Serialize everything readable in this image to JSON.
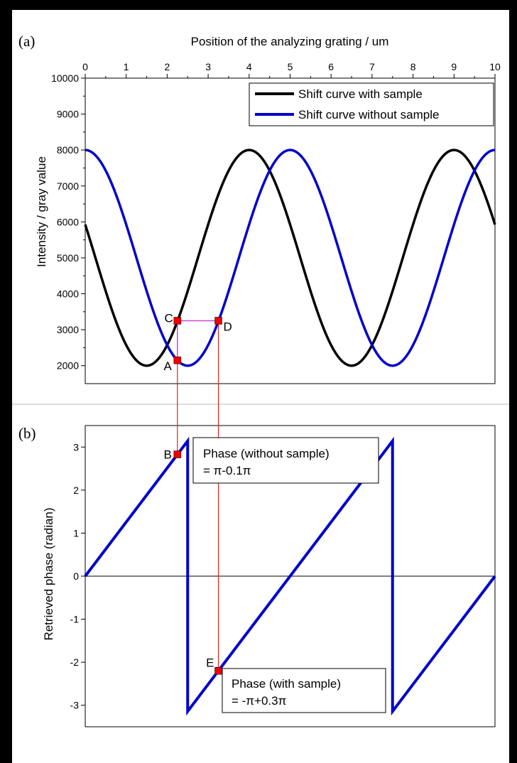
{
  "panels": {
    "a": {
      "label": "(a)"
    },
    "b": {
      "label": "(b)"
    }
  },
  "colors": {
    "sample": "#000000",
    "nosample": "#0000cc",
    "marker": "#ee0000",
    "guide_red": "#dd2222",
    "guide_violet": "#cc44cc"
  },
  "chart_data": [
    {
      "type": "line",
      "panel": "(a)",
      "xlabel": "Position of the analyzing grating / um",
      "ylabel": "Intensity / gray value",
      "xlim": [
        0,
        10
      ],
      "ylim": [
        1500,
        10000
      ],
      "xticks": [
        0,
        1,
        2,
        3,
        4,
        5,
        6,
        7,
        8,
        9,
        10
      ],
      "yticks": [
        2000,
        3000,
        4000,
        5000,
        6000,
        7000,
        8000,
        9000,
        10000
      ],
      "legend_position": "top-right",
      "series": [
        {
          "name": "Shift curve with sample",
          "color": "#000000",
          "mean": 5000,
          "amplitude": 3000,
          "period": 5,
          "max_at": [
            4,
            9
          ],
          "min_at": [
            1.5,
            6.5
          ]
        },
        {
          "name": "Shift curve without sample",
          "color": "#0000cc",
          "mean": 5000,
          "amplitude": 3000,
          "period": 5,
          "max_at": [
            0,
            5,
            10
          ],
          "min_at": [
            2.5,
            7.5
          ]
        }
      ],
      "points": [
        {
          "label": "A",
          "x": 2.25,
          "y": 2150
        },
        {
          "label": "C",
          "x": 2.25,
          "y": 3250
        },
        {
          "label": "D",
          "x": 3.25,
          "y": 3250
        }
      ]
    },
    {
      "type": "line",
      "panel": "(b)",
      "ylabel": "Retrieved phase (radian)",
      "xlim": [
        0,
        10
      ],
      "ylim": [
        -3.5,
        3.5
      ],
      "yticks": [
        -3,
        -2,
        -1,
        0,
        1,
        2,
        3
      ],
      "series": [
        {
          "name": "",
          "color": "#0000cc",
          "sawtooth_period": 5,
          "wrap_at": [
            2.5,
            7.5
          ],
          "range": [
            -3.1416,
            3.1416
          ]
        }
      ],
      "points": [
        {
          "label": "B",
          "x": 2.25,
          "y": 2.83
        },
        {
          "label": "E",
          "x": 3.25,
          "y": -2.2
        }
      ],
      "annotations": [
        {
          "line1": "Phase (without sample)",
          "line2": "= π-0.1π"
        },
        {
          "line1": "Phase (with sample)",
          "line2": "= -π+0.3π"
        }
      ]
    }
  ]
}
